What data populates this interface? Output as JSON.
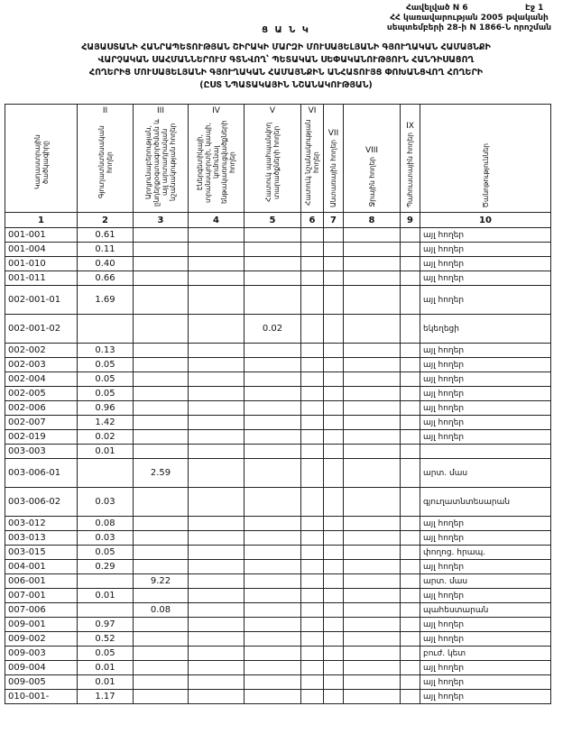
{
  "header": {
    "appendix": "Հավելված N 6",
    "page": "Էջ 1",
    "decree_line1": "ՀՀ կառավարության 2005 թվականի",
    "decree_line2": "սեպտեմբերի 28-ի N 1866-Ն որոշման",
    "list": "Ց Ա Ն Կ",
    "title": [
      "ՀԱՅԱՍՏԱՆԻ ՀԱՆՐԱՊԵՏՈՒԹՅԱՆ ՇԻՐԱԿԻ ՄԱՐԶԻ ՄՈՒՍԱՅԵԼՅԱՆԻ ԳՅՈՒՂԱԿԱՆ ՀԱՄԱՅՆՔԻ",
      "ՎԱՐՉԱԿԱՆ ՍԱՀՄԱՆՆԵՐՈՒՄ ԳՏՆՎՈՂ՝ ՊԵՏԱԿԱՆ ՍԵՓԱԿԱՆՈՒԹՅՈՒՆ ՀԱՆԴԻՍԱՑՈՂ",
      "ՀՈՂԵՐԻՑ ՄՈՒՍԱՅԵԼՅԱՆԻ ԳՅՈՒՂԱԿԱՆ ՀԱՄԱՅՆՔԻՆ ԱՆՀԱՏՈՒՅՑ ՓՈԽԱՆՑՎՈՂ ՀՈՂԵՐԻ",
      "(ԸՍՏ ՆՊԱՏԱԿԱՅԻՆ ՆՇԱՆԱԿՈՒԹՅԱՆ)"
    ]
  },
  "table": {
    "roman": [
      "II",
      "III",
      "IV",
      "V",
      "VI",
      "VII",
      "VIII",
      "IX"
    ],
    "headers": [
      "Կադաստրային ծածկագիրը",
      "Գյուղատնտեսական հողեր",
      "Արդյունաբերության, ընդերքօգտագործման և այլ արտադրական նշանակության հողեր",
      "Էներգետիկայի, տրանսպորտի, կապի, կոմունալ ենթակառուցվածքների հողեր",
      "Հատուկ պահպանվող տարածքների հողեր",
      "Հատուկ նշանակության հողեր",
      "Անտառային հողեր",
      "Ջրային հողեր",
      "Պահուստային հողեր",
      "Ծանոթություններ"
    ],
    "numbers": [
      "1",
      "2",
      "3",
      "4",
      "5",
      "6",
      "7",
      "8",
      "9",
      "10"
    ],
    "rows": [
      {
        "code": "001-001",
        "c2": "0.61",
        "note": "այլ հողեր"
      },
      {
        "code": "001-004",
        "c2": "0.11",
        "note": "այլ հողեր"
      },
      {
        "code": "001-010",
        "c2": "0.40",
        "note": "այլ հողեր"
      },
      {
        "code": "001-011",
        "c2": "0.66",
        "note": "այլ հողեր"
      },
      {
        "code": "002-001-01",
        "c2": "1.69",
        "note": "այլ հողեր"
      },
      {
        "code": "002-001-02",
        "c5": "0.02",
        "note": "եկեղեցի"
      },
      {
        "code": "002-002",
        "c2": "0.13",
        "note": "այլ հողեր"
      },
      {
        "code": "002-003",
        "c2": "0.05",
        "note": "այլ հողեր"
      },
      {
        "code": "002-004",
        "c2": "0.05",
        "note": "այլ հողեր"
      },
      {
        "code": "002-005",
        "c2": "0.05",
        "note": "այլ հողեր"
      },
      {
        "code": "002-006",
        "c2": "0.96",
        "note": "այլ հողեր"
      },
      {
        "code": "002-007",
        "c2": "1.42",
        "note": "այլ հողեր"
      },
      {
        "code": "002-019",
        "c2": "0.02",
        "note": "այլ հողեր"
      },
      {
        "code": "003-003",
        "c2": "0.01"
      },
      {
        "code": "003-006-01",
        "c3": "2.59",
        "note": "արտ. մաս"
      },
      {
        "code": "003-006-02",
        "c2": "0.03",
        "note": "գյուղատնտեսարան"
      },
      {
        "code": "003-012",
        "c2": "0.08",
        "note": "այլ հողեր"
      },
      {
        "code": "003-013",
        "c2": "0.03",
        "note": "այլ հողեր"
      },
      {
        "code": "003-015",
        "c2": "0.05",
        "note": "փողոց. հրապ."
      },
      {
        "code": "004-001",
        "c2": "0.29",
        "note": "այլ հողեր"
      },
      {
        "code": "006-001",
        "c3": "9.22",
        "note": "արտ. մաս"
      },
      {
        "code": "007-001",
        "c2": "0.01",
        "note": "այլ հողեր"
      },
      {
        "code": "007-006",
        "c3": "0.08",
        "note": "պահեստարան"
      },
      {
        "code": "009-001",
        "c2": "0.97",
        "note": "այլ հողեր"
      },
      {
        "code": "009-002",
        "c2": "0.52",
        "note": "այլ հողեր"
      },
      {
        "code": "009-003",
        "c2": "0.05",
        "note": "բուժ. կետ"
      },
      {
        "code": "009-004",
        "c2": "0.01",
        "note": "այլ հողեր"
      },
      {
        "code": "009-005",
        "c2": "0.01",
        "note": "այլ հողեր"
      },
      {
        "code": "010-001-",
        "c2": "1.17",
        "note": "այլ հողեր"
      }
    ]
  }
}
